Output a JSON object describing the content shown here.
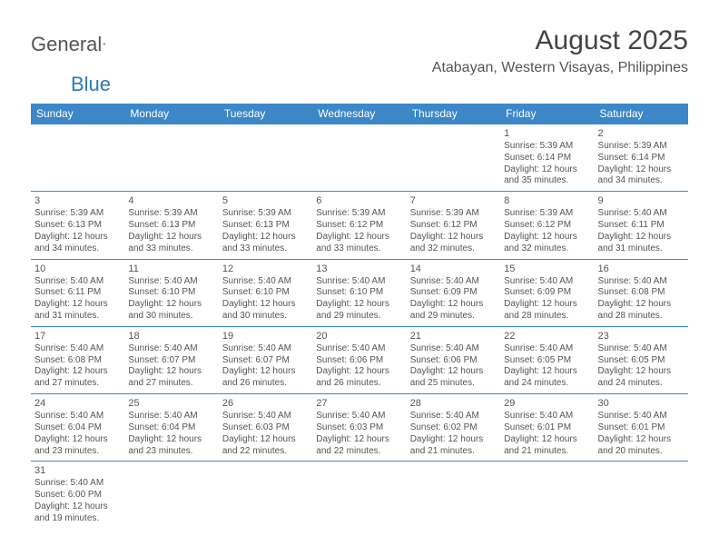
{
  "logo": {
    "general": "General",
    "blue": "Blue"
  },
  "header": {
    "title": "August 2025",
    "location": "Atabayan, Western Visayas, Philippines"
  },
  "styling": {
    "header_bg": "#3b87c8",
    "header_fg": "#ffffff",
    "border_color": "#3b87c8",
    "text_color": "#555555",
    "title_fontsize": 30,
    "location_fontsize": 16,
    "dow_fontsize": 12,
    "cell_fontsize": 10,
    "page_bg": "#ffffff"
  },
  "dow": [
    "Sunday",
    "Monday",
    "Tuesday",
    "Wednesday",
    "Thursday",
    "Friday",
    "Saturday"
  ],
  "weeks": [
    [
      null,
      null,
      null,
      null,
      null,
      {
        "n": "1",
        "sr": "Sunrise: 5:39 AM",
        "ss": "Sunset: 6:14 PM",
        "d1": "Daylight: 12 hours",
        "d2": "and 35 minutes."
      },
      {
        "n": "2",
        "sr": "Sunrise: 5:39 AM",
        "ss": "Sunset: 6:14 PM",
        "d1": "Daylight: 12 hours",
        "d2": "and 34 minutes."
      }
    ],
    [
      {
        "n": "3",
        "sr": "Sunrise: 5:39 AM",
        "ss": "Sunset: 6:13 PM",
        "d1": "Daylight: 12 hours",
        "d2": "and 34 minutes."
      },
      {
        "n": "4",
        "sr": "Sunrise: 5:39 AM",
        "ss": "Sunset: 6:13 PM",
        "d1": "Daylight: 12 hours",
        "d2": "and 33 minutes."
      },
      {
        "n": "5",
        "sr": "Sunrise: 5:39 AM",
        "ss": "Sunset: 6:13 PM",
        "d1": "Daylight: 12 hours",
        "d2": "and 33 minutes."
      },
      {
        "n": "6",
        "sr": "Sunrise: 5:39 AM",
        "ss": "Sunset: 6:12 PM",
        "d1": "Daylight: 12 hours",
        "d2": "and 33 minutes."
      },
      {
        "n": "7",
        "sr": "Sunrise: 5:39 AM",
        "ss": "Sunset: 6:12 PM",
        "d1": "Daylight: 12 hours",
        "d2": "and 32 minutes."
      },
      {
        "n": "8",
        "sr": "Sunrise: 5:39 AM",
        "ss": "Sunset: 6:12 PM",
        "d1": "Daylight: 12 hours",
        "d2": "and 32 minutes."
      },
      {
        "n": "9",
        "sr": "Sunrise: 5:40 AM",
        "ss": "Sunset: 6:11 PM",
        "d1": "Daylight: 12 hours",
        "d2": "and 31 minutes."
      }
    ],
    [
      {
        "n": "10",
        "sr": "Sunrise: 5:40 AM",
        "ss": "Sunset: 6:11 PM",
        "d1": "Daylight: 12 hours",
        "d2": "and 31 minutes."
      },
      {
        "n": "11",
        "sr": "Sunrise: 5:40 AM",
        "ss": "Sunset: 6:10 PM",
        "d1": "Daylight: 12 hours",
        "d2": "and 30 minutes."
      },
      {
        "n": "12",
        "sr": "Sunrise: 5:40 AM",
        "ss": "Sunset: 6:10 PM",
        "d1": "Daylight: 12 hours",
        "d2": "and 30 minutes."
      },
      {
        "n": "13",
        "sr": "Sunrise: 5:40 AM",
        "ss": "Sunset: 6:10 PM",
        "d1": "Daylight: 12 hours",
        "d2": "and 29 minutes."
      },
      {
        "n": "14",
        "sr": "Sunrise: 5:40 AM",
        "ss": "Sunset: 6:09 PM",
        "d1": "Daylight: 12 hours",
        "d2": "and 29 minutes."
      },
      {
        "n": "15",
        "sr": "Sunrise: 5:40 AM",
        "ss": "Sunset: 6:09 PM",
        "d1": "Daylight: 12 hours",
        "d2": "and 28 minutes."
      },
      {
        "n": "16",
        "sr": "Sunrise: 5:40 AM",
        "ss": "Sunset: 6:08 PM",
        "d1": "Daylight: 12 hours",
        "d2": "and 28 minutes."
      }
    ],
    [
      {
        "n": "17",
        "sr": "Sunrise: 5:40 AM",
        "ss": "Sunset: 6:08 PM",
        "d1": "Daylight: 12 hours",
        "d2": "and 27 minutes."
      },
      {
        "n": "18",
        "sr": "Sunrise: 5:40 AM",
        "ss": "Sunset: 6:07 PM",
        "d1": "Daylight: 12 hours",
        "d2": "and 27 minutes."
      },
      {
        "n": "19",
        "sr": "Sunrise: 5:40 AM",
        "ss": "Sunset: 6:07 PM",
        "d1": "Daylight: 12 hours",
        "d2": "and 26 minutes."
      },
      {
        "n": "20",
        "sr": "Sunrise: 5:40 AM",
        "ss": "Sunset: 6:06 PM",
        "d1": "Daylight: 12 hours",
        "d2": "and 26 minutes."
      },
      {
        "n": "21",
        "sr": "Sunrise: 5:40 AM",
        "ss": "Sunset: 6:06 PM",
        "d1": "Daylight: 12 hours",
        "d2": "and 25 minutes."
      },
      {
        "n": "22",
        "sr": "Sunrise: 5:40 AM",
        "ss": "Sunset: 6:05 PM",
        "d1": "Daylight: 12 hours",
        "d2": "and 24 minutes."
      },
      {
        "n": "23",
        "sr": "Sunrise: 5:40 AM",
        "ss": "Sunset: 6:05 PM",
        "d1": "Daylight: 12 hours",
        "d2": "and 24 minutes."
      }
    ],
    [
      {
        "n": "24",
        "sr": "Sunrise: 5:40 AM",
        "ss": "Sunset: 6:04 PM",
        "d1": "Daylight: 12 hours",
        "d2": "and 23 minutes."
      },
      {
        "n": "25",
        "sr": "Sunrise: 5:40 AM",
        "ss": "Sunset: 6:04 PM",
        "d1": "Daylight: 12 hours",
        "d2": "and 23 minutes."
      },
      {
        "n": "26",
        "sr": "Sunrise: 5:40 AM",
        "ss": "Sunset: 6:03 PM",
        "d1": "Daylight: 12 hours",
        "d2": "and 22 minutes."
      },
      {
        "n": "27",
        "sr": "Sunrise: 5:40 AM",
        "ss": "Sunset: 6:03 PM",
        "d1": "Daylight: 12 hours",
        "d2": "and 22 minutes."
      },
      {
        "n": "28",
        "sr": "Sunrise: 5:40 AM",
        "ss": "Sunset: 6:02 PM",
        "d1": "Daylight: 12 hours",
        "d2": "and 21 minutes."
      },
      {
        "n": "29",
        "sr": "Sunrise: 5:40 AM",
        "ss": "Sunset: 6:01 PM",
        "d1": "Daylight: 12 hours",
        "d2": "and 21 minutes."
      },
      {
        "n": "30",
        "sr": "Sunrise: 5:40 AM",
        "ss": "Sunset: 6:01 PM",
        "d1": "Daylight: 12 hours",
        "d2": "and 20 minutes."
      }
    ],
    [
      {
        "n": "31",
        "sr": "Sunrise: 5:40 AM",
        "ss": "Sunset: 6:00 PM",
        "d1": "Daylight: 12 hours",
        "d2": "and 19 minutes."
      },
      null,
      null,
      null,
      null,
      null,
      null
    ]
  ]
}
